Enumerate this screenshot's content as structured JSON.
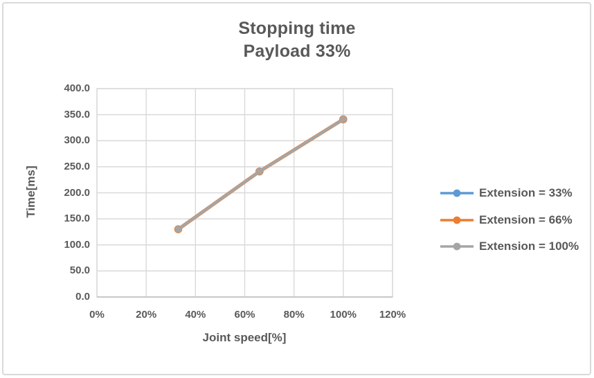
{
  "colors": {
    "text": "#595959",
    "grid": "#d9d9d9",
    "axis_line": "#bfbfbf",
    "plot_border": "#d9d9d9",
    "frame_border": "#d9d9d9",
    "background": "#ffffff"
  },
  "chart_data": {
    "type": "line",
    "title": "Stopping time",
    "subtitle": "Payload 33%",
    "xlabel": "Joint speed[%]",
    "ylabel": "Time[ms]",
    "xlim": [
      0,
      120
    ],
    "ylim": [
      0,
      400
    ],
    "grid": true,
    "legend_position": "right",
    "xticks": {
      "values": [
        0,
        20,
        40,
        60,
        80,
        100,
        120
      ],
      "labels": [
        "0%",
        "20%",
        "40%",
        "60%",
        "80%",
        "100%",
        "120%"
      ]
    },
    "yticks": {
      "values": [
        0,
        50,
        100,
        150,
        200,
        250,
        300,
        350,
        400
      ],
      "labels": [
        "0.0",
        "50.0",
        "100.0",
        "150.0",
        "200.0",
        "250.0",
        "300.0",
        "350.0",
        "400.0"
      ]
    },
    "x": [
      33,
      66,
      100
    ],
    "series": [
      {
        "name": "Extension = 33%",
        "color": "#5B9BD5",
        "values": [
          130,
          241,
          341
        ]
      },
      {
        "name": "Extension = 66%",
        "color": "#ED7D31",
        "values": [
          130,
          241,
          341
        ]
      },
      {
        "name": "Extension = 100%",
        "color": "#A5A5A5",
        "values": [
          130,
          241,
          341
        ]
      }
    ],
    "note_visible_overlap": "All three series coincide; gray series drawn on top"
  }
}
